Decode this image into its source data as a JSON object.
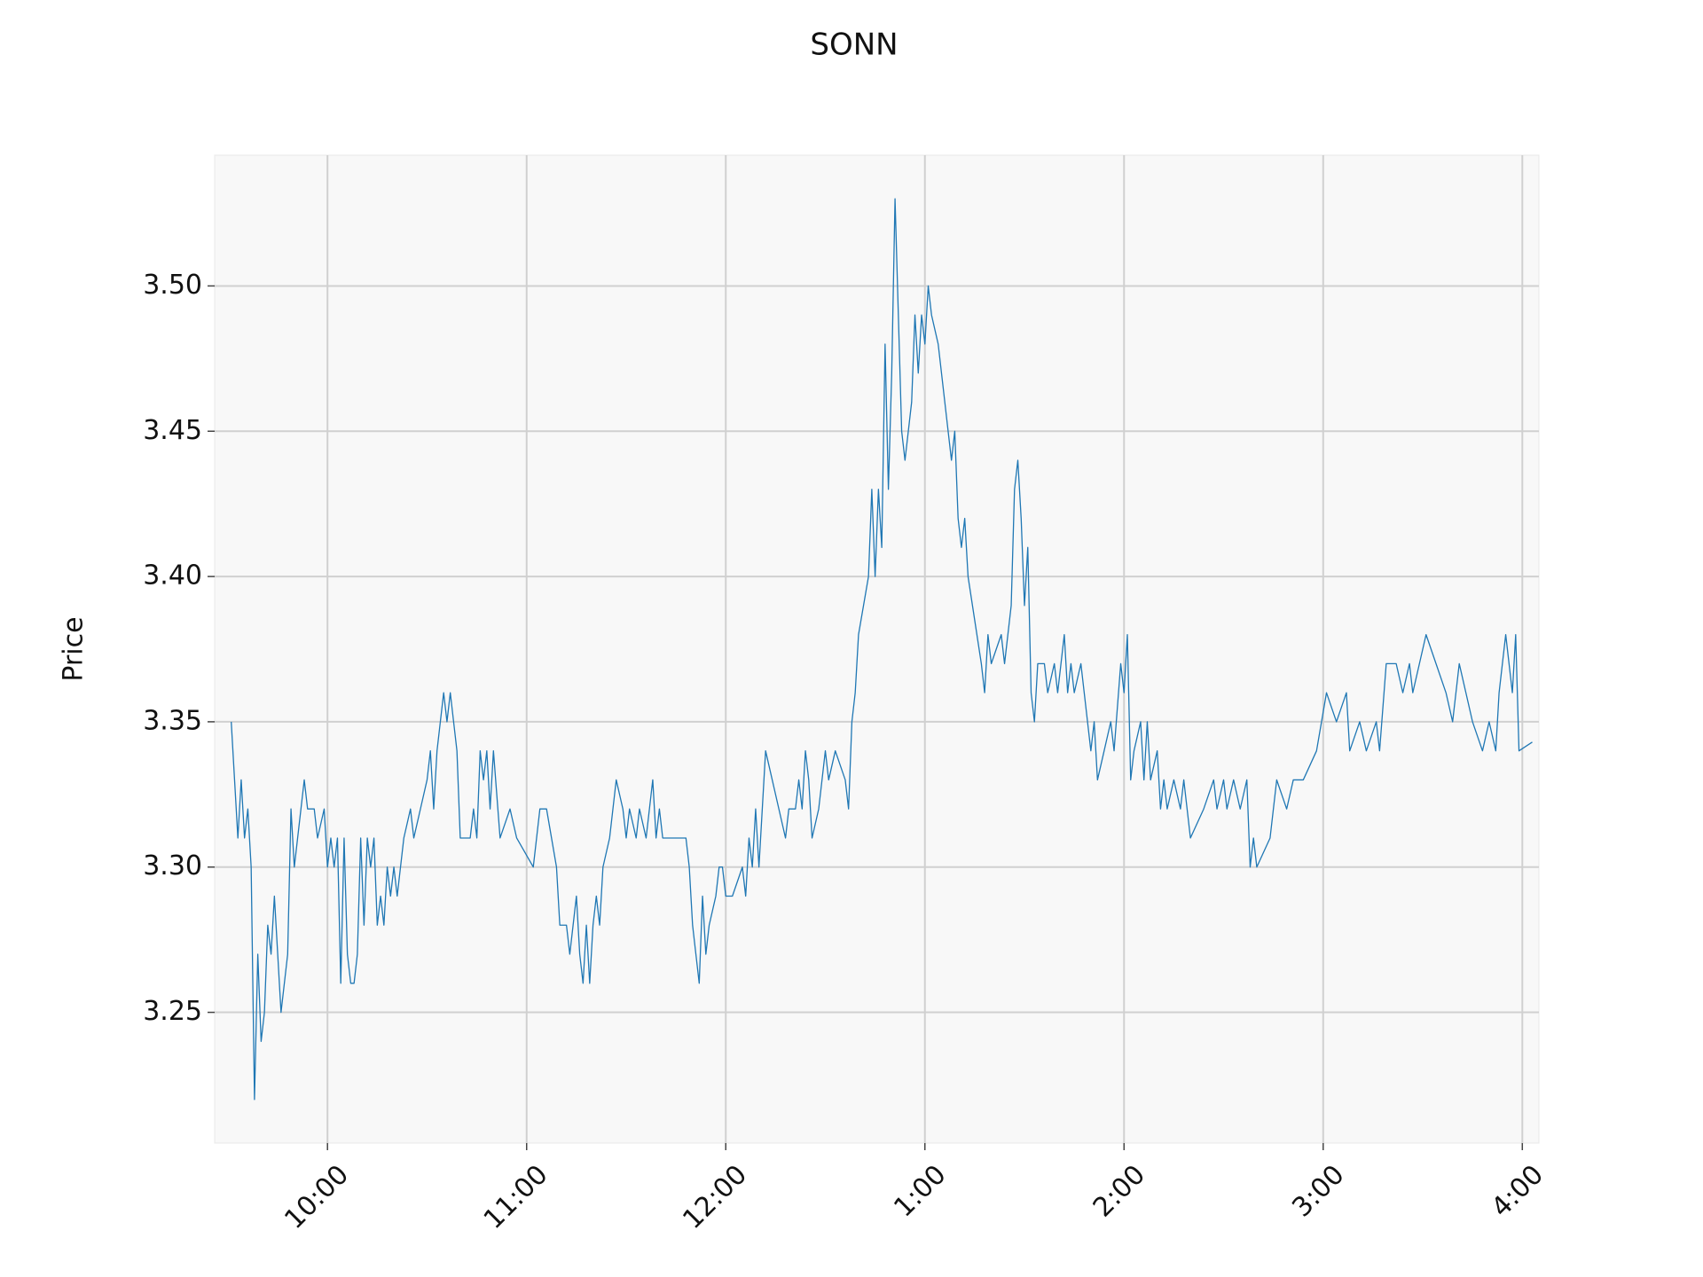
{
  "chart_data": {
    "type": "line",
    "title": "SONN",
    "y_label": "Price",
    "color": "#1f77b4",
    "grid": true,
    "x": [
      "9:31",
      "9:32",
      "9:33",
      "9:34",
      "9:35",
      "9:36",
      "9:37",
      "9:38",
      "9:39",
      "9:40",
      "9:41",
      "9:42",
      "9:43",
      "9:44",
      "9:45",
      "9:46",
      "9:48",
      "9:49",
      "9:50",
      "9:51",
      "9:53",
      "9:54",
      "9:56",
      "9:57",
      "9:59",
      "10:00",
      "10:01",
      "10:02",
      "10:03",
      "10:04",
      "10:05",
      "10:06",
      "10:07",
      "10:08",
      "10:09",
      "10:10",
      "10:11",
      "10:12",
      "10:13",
      "10:14",
      "10:15",
      "10:16",
      "10:17",
      "10:18",
      "10:19",
      "10:20",
      "10:21",
      "10:23",
      "10:25",
      "10:26",
      "10:28",
      "10:30",
      "10:31",
      "10:32",
      "10:33",
      "10:35",
      "10:36",
      "10:37",
      "10:38",
      "10:39",
      "10:40",
      "10:43",
      "10:44",
      "10:45",
      "10:46",
      "10:47",
      "10:48",
      "10:49",
      "10:50",
      "10:52",
      "10:55",
      "10:57",
      "11:02",
      "11:03",
      "11:04",
      "11:06",
      "11:09",
      "11:10",
      "11:12",
      "11:13",
      "11:14",
      "11:15",
      "11:16",
      "11:17",
      "11:18",
      "11:19",
      "11:20",
      "11:21",
      "11:22",
      "11:23",
      "11:25",
      "11:26",
      "11:27",
      "11:29",
      "11:30",
      "11:31",
      "11:33",
      "11:34",
      "11:36",
      "11:37",
      "11:38",
      "11:39",
      "11:40",
      "11:41",
      "11:48",
      "11:49",
      "11:50",
      "11:51",
      "11:52",
      "11:53",
      "11:54",
      "11:55",
      "11:57",
      "11:58",
      "11:59",
      "12:00",
      "12:02",
      "12:05",
      "12:06",
      "12:07",
      "12:08",
      "12:09",
      "12:10",
      "12:12",
      "12:16",
      "12:18",
      "12:19",
      "12:21",
      "12:22",
      "12:23",
      "12:24",
      "12:25",
      "12:26",
      "12:28",
      "12:30",
      "12:31",
      "12:33",
      "12:36",
      "12:37",
      "12:38",
      "12:39",
      "12:40",
      "12:43",
      "12:44",
      "12:45",
      "12:46",
      "12:47",
      "12:48",
      "12:49",
      "12:50",
      "12:51",
      "12:52",
      "12:53",
      "12:54",
      "12:56",
      "12:57",
      "12:58",
      "12:59",
      "1:00",
      "1:01",
      "1:02",
      "1:04",
      "1:08",
      "1:09",
      "1:10",
      "1:11",
      "1:12",
      "1:13",
      "1:17",
      "1:18",
      "1:19",
      "1:20",
      "1:23",
      "1:24",
      "1:25",
      "1:26",
      "1:27",
      "1:28",
      "1:29",
      "1:30",
      "1:31",
      "1:32",
      "1:33",
      "1:34",
      "1:36",
      "1:37",
      "1:39",
      "1:40",
      "1:42",
      "1:43",
      "1:44",
      "1:45",
      "1:47",
      "1:48",
      "1:50",
      "1:51",
      "1:52",
      "1:54",
      "1:56",
      "1:57",
      "1:59",
      "2:00",
      "2:01",
      "2:02",
      "2:03",
      "2:05",
      "2:06",
      "2:07",
      "2:08",
      "2:10",
      "2:11",
      "2:12",
      "2:13",
      "2:15",
      "2:17",
      "2:18",
      "2:20",
      "2:24",
      "2:27",
      "2:28",
      "2:30",
      "2:31",
      "2:33",
      "2:35",
      "2:37",
      "2:38",
      "2:39",
      "2:40",
      "2:44",
      "2:46",
      "2:49",
      "2:51",
      "2:54",
      "2:58",
      "3:01",
      "3:04",
      "3:07",
      "3:08",
      "3:11",
      "3:13",
      "3:16",
      "3:17",
      "3:19",
      "3:22",
      "3:24",
      "3:26",
      "3:27",
      "3:29",
      "3:31",
      "3:34",
      "3:37",
      "3:39",
      "3:41",
      "3:43",
      "3:45",
      "3:48",
      "3:50",
      "3:52",
      "3:53",
      "3:55",
      "3:57",
      "3:58",
      "3:59",
      "4:03"
    ],
    "values": [
      3.35,
      3.33,
      3.31,
      3.33,
      3.31,
      3.32,
      3.3,
      3.22,
      3.27,
      3.24,
      3.25,
      3.28,
      3.27,
      3.29,
      3.27,
      3.25,
      3.27,
      3.32,
      3.3,
      3.31,
      3.33,
      3.32,
      3.32,
      3.31,
      3.32,
      3.3,
      3.31,
      3.3,
      3.31,
      3.26,
      3.31,
      3.27,
      3.26,
      3.26,
      3.27,
      3.31,
      3.28,
      3.31,
      3.3,
      3.31,
      3.28,
      3.29,
      3.28,
      3.3,
      3.29,
      3.3,
      3.29,
      3.31,
      3.32,
      3.31,
      3.32,
      3.33,
      3.34,
      3.32,
      3.34,
      3.36,
      3.35,
      3.36,
      3.35,
      3.34,
      3.31,
      3.31,
      3.32,
      3.31,
      3.34,
      3.33,
      3.34,
      3.32,
      3.34,
      3.31,
      3.32,
      3.31,
      3.3,
      3.31,
      3.32,
      3.32,
      3.3,
      3.28,
      3.28,
      3.27,
      3.28,
      3.29,
      3.27,
      3.26,
      3.28,
      3.26,
      3.28,
      3.29,
      3.28,
      3.3,
      3.31,
      3.32,
      3.33,
      3.32,
      3.31,
      3.32,
      3.31,
      3.32,
      3.31,
      3.32,
      3.33,
      3.31,
      3.32,
      3.31,
      3.31,
      3.3,
      3.28,
      3.27,
      3.26,
      3.29,
      3.27,
      3.28,
      3.29,
      3.3,
      3.3,
      3.29,
      3.29,
      3.3,
      3.29,
      3.31,
      3.3,
      3.32,
      3.3,
      3.34,
      3.32,
      3.31,
      3.32,
      3.32,
      3.33,
      3.32,
      3.34,
      3.33,
      3.31,
      3.32,
      3.34,
      3.33,
      3.34,
      3.33,
      3.32,
      3.35,
      3.36,
      3.38,
      3.4,
      3.43,
      3.4,
      3.43,
      3.41,
      3.48,
      3.43,
      3.47,
      3.53,
      3.49,
      3.45,
      3.44,
      3.46,
      3.49,
      3.47,
      3.49,
      3.48,
      3.5,
      3.49,
      3.48,
      3.44,
      3.45,
      3.42,
      3.41,
      3.42,
      3.4,
      3.37,
      3.36,
      3.38,
      3.37,
      3.38,
      3.37,
      3.38,
      3.39,
      3.43,
      3.44,
      3.42,
      3.39,
      3.41,
      3.36,
      3.35,
      3.37,
      3.37,
      3.36,
      3.37,
      3.36,
      3.38,
      3.36,
      3.37,
      3.36,
      3.37,
      3.36,
      3.34,
      3.35,
      3.33,
      3.34,
      3.35,
      3.34,
      3.37,
      3.36,
      3.38,
      3.33,
      3.34,
      3.35,
      3.33,
      3.35,
      3.33,
      3.34,
      3.32,
      3.33,
      3.32,
      3.33,
      3.32,
      3.33,
      3.31,
      3.32,
      3.33,
      3.32,
      3.33,
      3.32,
      3.33,
      3.32,
      3.33,
      3.3,
      3.31,
      3.3,
      3.31,
      3.33,
      3.32,
      3.33,
      3.33,
      3.34,
      3.36,
      3.35,
      3.36,
      3.34,
      3.35,
      3.34,
      3.35,
      3.34,
      3.37,
      3.37,
      3.36,
      3.37,
      3.36,
      3.37,
      3.38,
      3.37,
      3.36,
      3.35,
      3.37,
      3.36,
      3.35,
      3.34,
      3.35,
      3.34,
      3.36,
      3.38,
      3.36,
      3.38,
      3.34,
      3.343
    ],
    "xlim": [
      "9:26",
      "4:05"
    ],
    "xticks": [
      "10:00",
      "11:00",
      "12:00",
      "1:00",
      "2:00",
      "3:00",
      "4:00"
    ],
    "ylim": [
      3.205,
      3.545
    ],
    "yticks": [
      3.25,
      {
        "value": 3.3,
        "label": "3.30"
      },
      3.35,
      {
        "value": 3.4,
        "label": "3.40"
      },
      3.45,
      {
        "value": 3.5,
        "label": "3.50"
      }
    ]
  }
}
